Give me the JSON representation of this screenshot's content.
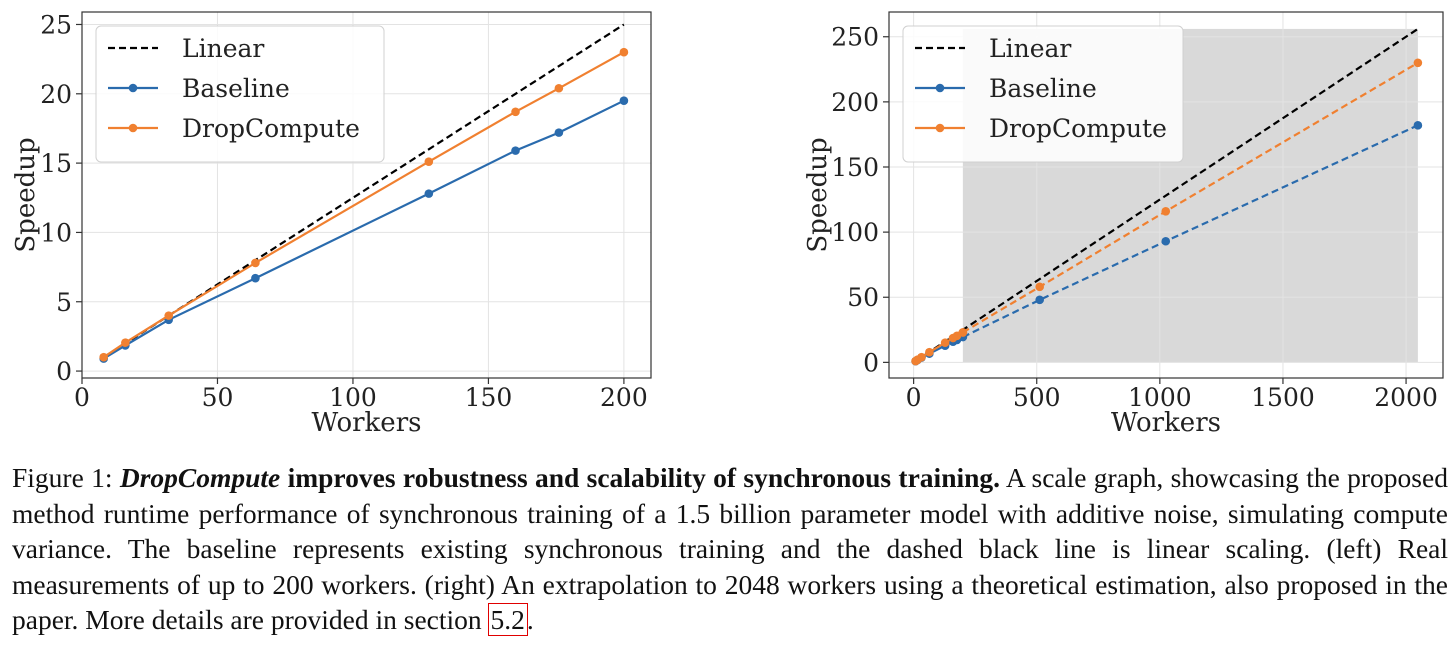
{
  "chart_data": [
    {
      "type": "line",
      "panel": "left",
      "title": "",
      "xlabel": "Workers",
      "ylabel": "Speedup",
      "xlim": [
        0,
        210
      ],
      "ylim": [
        -0.5,
        25.9
      ],
      "xticks": [
        0,
        50,
        100,
        150,
        200
      ],
      "yticks": [
        0,
        5,
        10,
        15,
        20,
        25
      ],
      "grid": true,
      "legend_placement": "top-left",
      "series": [
        {
          "name": "Linear",
          "style": "dashed",
          "color": "#000000",
          "markers": false,
          "x": [
            8,
            200
          ],
          "y": [
            1,
            25
          ]
        },
        {
          "name": "Baseline",
          "style": "solid",
          "color": "#2a6bad",
          "markers": true,
          "x": [
            8,
            16,
            32,
            64,
            128,
            160,
            176,
            200
          ],
          "y": [
            0.9,
            1.85,
            3.7,
            6.7,
            12.8,
            15.9,
            17.2,
            19.5
          ]
        },
        {
          "name": "DropCompute",
          "style": "solid",
          "color": "#f08030",
          "markers": true,
          "x": [
            8,
            16,
            32,
            64,
            128,
            160,
            176,
            200
          ],
          "y": [
            1.0,
            2.05,
            4.0,
            7.8,
            15.1,
            18.7,
            20.4,
            23.0
          ]
        }
      ]
    },
    {
      "type": "line",
      "panel": "right",
      "title": "",
      "xlabel": "Workers",
      "ylabel": "Speedup",
      "xlim": [
        -100,
        2150
      ],
      "ylim": [
        -12,
        269
      ],
      "xticks": [
        0,
        500,
        1000,
        1500,
        2000
      ],
      "yticks": [
        0,
        50,
        100,
        150,
        200,
        250
      ],
      "grid": true,
      "legend_placement": "top-left",
      "shaded_region": {
        "x": [
          200,
          2048
        ],
        "y": [
          0,
          256
        ],
        "color": "#d9d9d9"
      },
      "series": [
        {
          "name": "Linear",
          "style": "dashed",
          "color": "#000000",
          "markers": false,
          "x": [
            8,
            2048
          ],
          "y": [
            1,
            256
          ]
        },
        {
          "name": "Baseline",
          "style": "solid",
          "color": "#2a6bad",
          "markers": true,
          "x": [
            8,
            16,
            32,
            64,
            128,
            160,
            176,
            200
          ],
          "y": [
            0.9,
            1.85,
            3.7,
            6.7,
            12.8,
            15.9,
            17.2,
            19.5
          ]
        },
        {
          "name": "",
          "style": "dashed",
          "color": "#2a6bad",
          "markers": true,
          "x": [
            200,
            512,
            1024,
            2048
          ],
          "y": [
            19.5,
            48,
            93,
            182
          ]
        },
        {
          "name": "DropCompute",
          "style": "solid",
          "color": "#f08030",
          "markers": true,
          "x": [
            8,
            16,
            32,
            64,
            128,
            160,
            176,
            200
          ],
          "y": [
            1.0,
            2.05,
            4.0,
            7.8,
            15.1,
            18.7,
            20.4,
            23.0
          ]
        },
        {
          "name": "",
          "style": "dashed",
          "color": "#f08030",
          "markers": true,
          "x": [
            200,
            512,
            1024,
            2048
          ],
          "y": [
            23.0,
            58,
            116,
            230
          ]
        }
      ]
    }
  ],
  "caption": {
    "label": "Figure 1: ",
    "method": "DropCompute",
    "headline": " improves robustness and scalability of synchronous training.",
    "body": "  A scale graph, showcasing the proposed method runtime performance of synchronous training of a 1.5 billion parameter model with additive noise, simulating compute variance. The baseline represents existing synchronous training and the dashed black line is linear scaling. (left) Real measurements of up to 200 workers. (right) An extrapolation to 2048 workers using a theoretical estimation, also proposed in the paper. More details are provided in section ",
    "ref": "5.2",
    "end": "."
  }
}
